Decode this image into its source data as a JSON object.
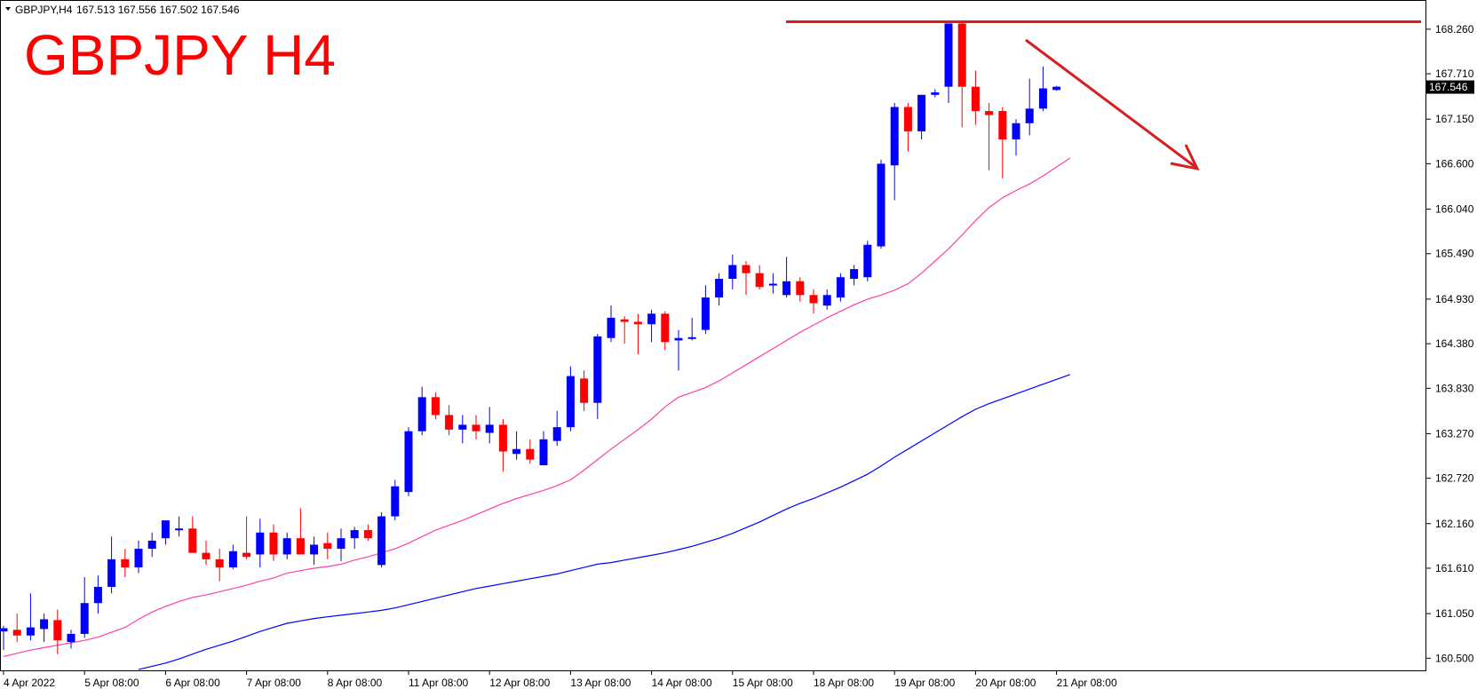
{
  "header": {
    "symbol_info": "GBPJPY,H4",
    "ohlc": "167.513 167.556 167.502 167.546",
    "big_title": "GBPJPY H4"
  },
  "price_label": "167.546",
  "colors": {
    "bull": "#0000ff",
    "bear": "#ff0000",
    "ma_fast": "#ff3fa8",
    "ma_slow": "#0000ff",
    "resistance": "#e01b1b",
    "arrow": "#d42020",
    "title": "#ff0000"
  },
  "chart_data": {
    "type": "candlestick",
    "title": "GBPJPY H4",
    "symbol": "GBPJPY",
    "timeframe": "H4",
    "ylim": [
      160.35,
      168.62
    ],
    "y_ticks": [
      "168.260",
      "167.710",
      "167.150",
      "166.600",
      "166.040",
      "165.490",
      "164.930",
      "164.380",
      "163.830",
      "163.270",
      "162.720",
      "162.160",
      "161.610",
      "161.050",
      "160.500"
    ],
    "x_tick_labels": [
      "4 Apr 2022",
      "5 Apr 08:00",
      "6 Apr 08:00",
      "7 Apr 08:00",
      "8 Apr 08:00",
      "11 Apr 08:00",
      "12 Apr 08:00",
      "13 Apr 08:00",
      "14 Apr 08:00",
      "15 Apr 08:00",
      "18 Apr 08:00",
      "19 Apr 08:00",
      "20 Apr 08:00",
      "21 Apr 08:00"
    ],
    "x_tick_candle_index": [
      0,
      6,
      12,
      18,
      24,
      30,
      36,
      42,
      48,
      54,
      60,
      66,
      72,
      78
    ],
    "current_price": 167.546,
    "candles": [
      {
        "o": 160.83,
        "h": 160.9,
        "l": 160.6,
        "c": 160.87
      },
      {
        "o": 160.85,
        "h": 161.05,
        "l": 160.7,
        "c": 160.78
      },
      {
        "o": 160.78,
        "h": 161.3,
        "l": 160.72,
        "c": 160.88
      },
      {
        "o": 160.86,
        "h": 161.05,
        "l": 160.7,
        "c": 160.98
      },
      {
        "o": 160.97,
        "h": 161.1,
        "l": 160.55,
        "c": 160.72
      },
      {
        "o": 160.7,
        "h": 160.85,
        "l": 160.62,
        "c": 160.8
      },
      {
        "o": 160.8,
        "h": 161.5,
        "l": 160.75,
        "c": 161.18
      },
      {
        "o": 161.18,
        "h": 161.52,
        "l": 161.05,
        "c": 161.38
      },
      {
        "o": 161.38,
        "h": 162.0,
        "l": 161.3,
        "c": 161.72
      },
      {
        "o": 161.72,
        "h": 161.85,
        "l": 161.5,
        "c": 161.62
      },
      {
        "o": 161.62,
        "h": 161.95,
        "l": 161.55,
        "c": 161.85
      },
      {
        "o": 161.85,
        "h": 162.05,
        "l": 161.75,
        "c": 161.95
      },
      {
        "o": 161.98,
        "h": 162.2,
        "l": 161.9,
        "c": 162.2
      },
      {
        "o": 162.1,
        "h": 162.25,
        "l": 162.0,
        "c": 162.1
      },
      {
        "o": 162.1,
        "h": 162.25,
        "l": 161.8,
        "c": 161.8
      },
      {
        "o": 161.8,
        "h": 161.95,
        "l": 161.65,
        "c": 161.72
      },
      {
        "o": 161.72,
        "h": 161.85,
        "l": 161.45,
        "c": 161.62
      },
      {
        "o": 161.62,
        "h": 161.9,
        "l": 161.6,
        "c": 161.82
      },
      {
        "o": 161.8,
        "h": 162.25,
        "l": 161.72,
        "c": 161.75
      },
      {
        "o": 161.78,
        "h": 162.22,
        "l": 161.62,
        "c": 162.05
      },
      {
        "o": 162.05,
        "h": 162.15,
        "l": 161.7,
        "c": 161.78
      },
      {
        "o": 161.78,
        "h": 162.05,
        "l": 161.72,
        "c": 161.98
      },
      {
        "o": 161.98,
        "h": 162.35,
        "l": 161.78,
        "c": 161.78
      },
      {
        "o": 161.78,
        "h": 162.0,
        "l": 161.65,
        "c": 161.9
      },
      {
        "o": 161.92,
        "h": 162.05,
        "l": 161.72,
        "c": 161.85
      },
      {
        "o": 161.85,
        "h": 162.1,
        "l": 161.7,
        "c": 161.98
      },
      {
        "o": 161.98,
        "h": 162.12,
        "l": 161.85,
        "c": 162.08
      },
      {
        "o": 162.08,
        "h": 162.15,
        "l": 161.95,
        "c": 161.98
      },
      {
        "o": 161.65,
        "h": 162.3,
        "l": 161.62,
        "c": 162.25
      },
      {
        "o": 162.25,
        "h": 162.7,
        "l": 162.2,
        "c": 162.62
      },
      {
        "o": 162.55,
        "h": 163.35,
        "l": 162.5,
        "c": 163.3
      },
      {
        "o": 163.3,
        "h": 163.85,
        "l": 163.25,
        "c": 163.72
      },
      {
        "o": 163.72,
        "h": 163.78,
        "l": 163.45,
        "c": 163.5
      },
      {
        "o": 163.5,
        "h": 163.62,
        "l": 163.25,
        "c": 163.32
      },
      {
        "o": 163.32,
        "h": 163.5,
        "l": 163.15,
        "c": 163.38
      },
      {
        "o": 163.38,
        "h": 163.5,
        "l": 163.2,
        "c": 163.3
      },
      {
        "o": 163.28,
        "h": 163.6,
        "l": 163.15,
        "c": 163.38
      },
      {
        "o": 163.38,
        "h": 163.45,
        "l": 162.8,
        "c": 163.05
      },
      {
        "o": 163.02,
        "h": 163.3,
        "l": 162.95,
        "c": 163.08
      },
      {
        "o": 163.08,
        "h": 163.2,
        "l": 162.9,
        "c": 162.95
      },
      {
        "o": 162.88,
        "h": 163.3,
        "l": 162.88,
        "c": 163.2
      },
      {
        "o": 163.18,
        "h": 163.55,
        "l": 163.12,
        "c": 163.35
      },
      {
        "o": 163.35,
        "h": 164.1,
        "l": 163.3,
        "c": 163.98
      },
      {
        "o": 163.95,
        "h": 164.05,
        "l": 163.55,
        "c": 163.65
      },
      {
        "o": 163.65,
        "h": 164.5,
        "l": 163.45,
        "c": 164.47
      },
      {
        "o": 164.45,
        "h": 164.85,
        "l": 164.4,
        "c": 164.7
      },
      {
        "o": 164.68,
        "h": 164.72,
        "l": 164.38,
        "c": 164.65
      },
      {
        "o": 164.65,
        "h": 164.75,
        "l": 164.25,
        "c": 164.62
      },
      {
        "o": 164.62,
        "h": 164.8,
        "l": 164.4,
        "c": 164.75
      },
      {
        "o": 164.75,
        "h": 164.78,
        "l": 164.3,
        "c": 164.4
      },
      {
        "o": 164.42,
        "h": 164.55,
        "l": 164.05,
        "c": 164.45
      },
      {
        "o": 164.44,
        "h": 164.7,
        "l": 164.42,
        "c": 164.46
      },
      {
        "o": 164.55,
        "h": 165.1,
        "l": 164.5,
        "c": 164.95
      },
      {
        "o": 164.95,
        "h": 165.25,
        "l": 164.85,
        "c": 165.18
      },
      {
        "o": 165.18,
        "h": 165.48,
        "l": 165.05,
        "c": 165.35
      },
      {
        "o": 165.35,
        "h": 165.4,
        "l": 164.98,
        "c": 165.25
      },
      {
        "o": 165.25,
        "h": 165.35,
        "l": 165.05,
        "c": 165.08
      },
      {
        "o": 165.1,
        "h": 165.25,
        "l": 165.0,
        "c": 165.12
      },
      {
        "o": 164.98,
        "h": 165.45,
        "l": 164.95,
        "c": 165.15
      },
      {
        "o": 165.15,
        "h": 165.2,
        "l": 164.9,
        "c": 164.98
      },
      {
        "o": 164.98,
        "h": 165.05,
        "l": 164.75,
        "c": 164.88
      },
      {
        "o": 164.85,
        "h": 165.05,
        "l": 164.8,
        "c": 164.98
      },
      {
        "o": 164.95,
        "h": 165.25,
        "l": 164.9,
        "c": 165.2
      },
      {
        "o": 165.18,
        "h": 165.35,
        "l": 165.1,
        "c": 165.3
      },
      {
        "o": 165.2,
        "h": 165.65,
        "l": 165.15,
        "c": 165.6
      },
      {
        "o": 165.58,
        "h": 166.65,
        "l": 165.55,
        "c": 166.6
      },
      {
        "o": 166.58,
        "h": 167.35,
        "l": 166.15,
        "c": 167.3
      },
      {
        "o": 167.3,
        "h": 167.35,
        "l": 166.75,
        "c": 167.0
      },
      {
        "o": 167.0,
        "h": 167.45,
        "l": 166.9,
        "c": 167.45
      },
      {
        "o": 167.45,
        "h": 167.52,
        "l": 167.42,
        "c": 167.48
      },
      {
        "o": 167.55,
        "h": 168.33,
        "l": 167.35,
        "c": 168.33
      },
      {
        "o": 168.33,
        "h": 168.35,
        "l": 167.05,
        "c": 167.55
      },
      {
        "o": 167.55,
        "h": 167.75,
        "l": 167.08,
        "c": 167.25
      },
      {
        "o": 167.25,
        "h": 167.35,
        "l": 166.52,
        "c": 167.2
      },
      {
        "o": 167.25,
        "h": 167.3,
        "l": 166.42,
        "c": 166.9
      },
      {
        "o": 166.9,
        "h": 167.15,
        "l": 166.7,
        "c": 167.1
      },
      {
        "o": 167.1,
        "h": 167.65,
        "l": 166.95,
        "c": 167.28
      },
      {
        "o": 167.28,
        "h": 167.8,
        "l": 167.25,
        "c": 167.53
      },
      {
        "o": 167.51,
        "h": 167.56,
        "l": 167.5,
        "c": 167.55
      }
    ],
    "ma_fast": [
      160.52,
      160.56,
      160.6,
      160.63,
      160.66,
      160.69,
      160.72,
      160.76,
      160.82,
      160.88,
      160.98,
      161.07,
      161.14,
      161.2,
      161.25,
      161.28,
      161.32,
      161.36,
      161.4,
      161.45,
      161.49,
      161.55,
      161.58,
      161.61,
      161.63,
      161.66,
      161.71,
      161.75,
      161.8,
      161.85,
      161.92,
      162.0,
      162.08,
      162.14,
      162.2,
      162.27,
      162.34,
      162.41,
      162.47,
      162.52,
      162.57,
      162.63,
      162.7,
      162.82,
      162.95,
      163.08,
      163.2,
      163.32,
      163.45,
      163.6,
      163.72,
      163.78,
      163.84,
      163.92,
      164.02,
      164.12,
      164.22,
      164.32,
      164.42,
      164.52,
      164.61,
      164.7,
      164.78,
      164.86,
      164.93,
      164.98,
      165.04,
      165.12,
      165.25,
      165.4,
      165.55,
      165.72,
      165.9,
      166.06,
      166.18,
      166.27,
      166.35,
      166.45,
      166.56,
      166.67
    ],
    "ma_slow": [
      null,
      null,
      null,
      null,
      null,
      null,
      null,
      null,
      null,
      null,
      160.36,
      160.4,
      160.44,
      160.49,
      160.55,
      160.61,
      160.66,
      160.71,
      160.77,
      160.83,
      160.88,
      160.93,
      160.96,
      160.99,
      161.01,
      161.03,
      161.05,
      161.07,
      161.09,
      161.12,
      161.16,
      161.2,
      161.24,
      161.28,
      161.32,
      161.36,
      161.39,
      161.42,
      161.45,
      161.48,
      161.51,
      161.54,
      161.58,
      161.62,
      161.66,
      161.68,
      161.71,
      161.74,
      161.77,
      161.8,
      161.84,
      161.88,
      161.93,
      161.98,
      162.04,
      162.11,
      162.18,
      162.26,
      162.34,
      162.41,
      162.47,
      162.54,
      162.61,
      162.69,
      162.77,
      162.87,
      162.98,
      163.08,
      163.18,
      163.28,
      163.38,
      163.48,
      163.57,
      163.64,
      163.7,
      163.76,
      163.82,
      163.88,
      163.94,
      164.0
    ]
  }
}
